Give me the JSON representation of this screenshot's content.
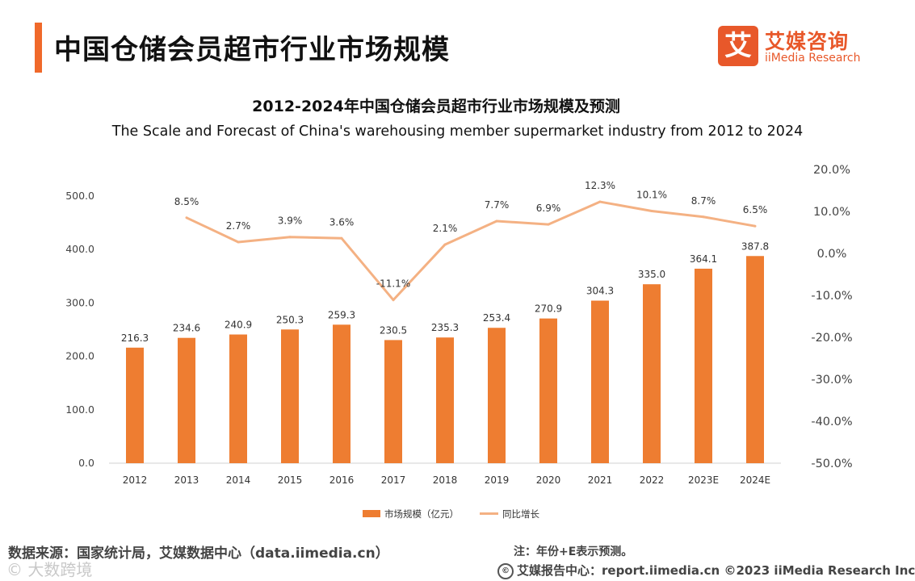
{
  "header": {
    "title": "中国仓储会员超市行业市场规模",
    "logo_glyph": "艾",
    "logo_cn": "艾媒咨询",
    "logo_en": "iiMedia Research"
  },
  "footer": {
    "source": "数据来源：国家统计局，艾媒数据中心（data.iimedia.cn）",
    "note": "注：年份+E表示预测。",
    "copyright": "艾媒报告中心：report.iimedia.cn ©2023  iiMedia Research  Inc",
    "watermark": "© 大数跨境"
  },
  "colors": {
    "accent": "#f0692a",
    "bar": "#ee7d31",
    "line": "#f4b183",
    "axis_text": "#444444"
  },
  "chart_data": {
    "type": "bar",
    "title": "2012-2024年中国仓储会员超市行业市场规模及预测",
    "subtitle": "The Scale and Forecast of China's warehousing member supermarket industry from 2012 to 2024",
    "categories": [
      "2012",
      "2013",
      "2014",
      "2015",
      "2016",
      "2017",
      "2018",
      "2019",
      "2020",
      "2021",
      "2022",
      "2023E",
      "2024E"
    ],
    "series": [
      {
        "name": "市场规模（亿元）",
        "type": "bar",
        "axis": "left",
        "values": [
          216.3,
          234.6,
          240.9,
          250.3,
          259.3,
          230.5,
          235.3,
          253.4,
          270.9,
          304.3,
          335.0,
          364.1,
          387.8
        ],
        "labels": [
          "216.3",
          "234.6",
          "240.9",
          "250.3",
          "259.3",
          "230.5",
          "235.3",
          "253.4",
          "270.9",
          "304.3",
          "335.0",
          "364.1",
          "387.8"
        ]
      },
      {
        "name": "同比增长",
        "type": "line",
        "axis": "right",
        "values": [
          null,
          8.5,
          2.7,
          3.9,
          3.6,
          -11.1,
          2.1,
          7.7,
          6.9,
          12.3,
          10.1,
          8.7,
          6.5
        ],
        "labels": [
          "",
          "8.5%",
          "2.7%",
          "3.9%",
          "3.6%",
          "-11.1%",
          "2.1%",
          "7.7%",
          "6.9%",
          "12.3%",
          "10.1%",
          "8.7%",
          "6.5%"
        ]
      }
    ],
    "left_axis": {
      "min": 0,
      "max": 500,
      "ticks": [
        0,
        100,
        200,
        300,
        400,
        500
      ],
      "tick_labels": [
        "0.0",
        "100.0",
        "200.0",
        "300.0",
        "400.0",
        "500.0"
      ]
    },
    "right_axis": {
      "min": -50,
      "max": 20,
      "ticks": [
        -50,
        -40,
        -30,
        -20,
        -10,
        0,
        10,
        20
      ],
      "tick_labels": [
        "-50.0%",
        "-40.0%",
        "-30.0%",
        "-20.0%",
        "-10.0%",
        "0.0%",
        "10.0%",
        "20.0%"
      ]
    },
    "legend": {
      "position": "bottom",
      "items": [
        "市场规模（亿元）",
        "同比增长"
      ]
    },
    "grid": false
  }
}
